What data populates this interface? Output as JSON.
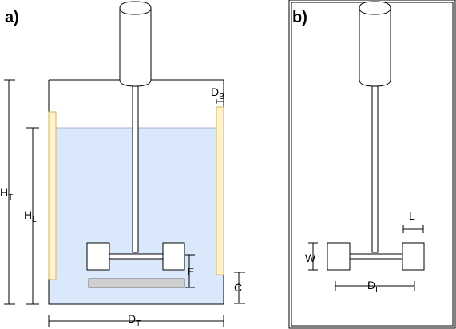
{
  "panels": {
    "a": {
      "label": "a)",
      "dims": {
        "ht": {
          "main": "H",
          "sub": "T"
        },
        "hl": {
          "main": "H",
          "sub": "L"
        },
        "db": {
          "main": "D",
          "sub": "B"
        },
        "dt": {
          "main": "D",
          "sub": "T"
        },
        "e": {
          "main": "E"
        },
        "c": {
          "main": "C"
        }
      }
    },
    "b": {
      "label": "b)",
      "dims": {
        "w": {
          "main": "W"
        },
        "l": {
          "main": "L"
        },
        "di": {
          "main": "D",
          "sub": "I"
        }
      }
    }
  },
  "colors": {
    "liquid": "#dae8fc",
    "baffle": "#fff2cc",
    "baffle_stroke": "#d6b656",
    "motor": "#ffffff",
    "sparger": "#d0d0d0"
  }
}
